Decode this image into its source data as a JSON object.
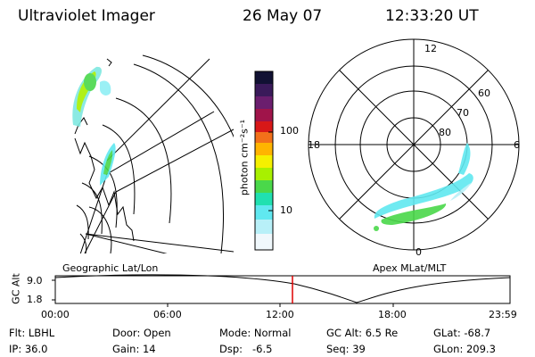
{
  "header": {
    "instrument": "Ultraviolet Imager",
    "date": "26 May 07",
    "time": "12:33:20 UT"
  },
  "colorbar": {
    "unit_label": "photon cm⁻²s⁻¹",
    "ticks": [
      "100",
      "10"
    ],
    "colors": [
      "#111133",
      "#3a1a5a",
      "#6b1e6e",
      "#a0144a",
      "#d81818",
      "#f2701a",
      "#ffb400",
      "#f5f000",
      "#a8f000",
      "#4ad84a",
      "#20e0b0",
      "#60e8f0",
      "#b8f0f8",
      "#f0f8fc"
    ]
  },
  "left_panel": {
    "caption": "Geographic Lat/Lon"
  },
  "right_panel": {
    "caption": "Apex MLat/MLT",
    "mlt_labels": [
      "12",
      "18",
      "6",
      "0"
    ],
    "lat_labels": [
      "60",
      "70",
      "80"
    ]
  },
  "altitude_plot": {
    "ylabel": "GC Alt",
    "y_ticks": [
      "9.0",
      "1.8"
    ],
    "x_ticks": [
      "00:00",
      "06:00",
      "12:00",
      "18:00",
      "23:59"
    ],
    "current_time_marker_color": "#dd0000"
  },
  "status": {
    "flt": "Flt: LBHL",
    "ip": "IP: 36.0",
    "door": "Door: Open",
    "gain": "Gain: 14",
    "mode": "Mode: Normal",
    "dsp": "Dsp:   -6.5",
    "gcalt": "GC Alt: 6.5 Re",
    "seq": "Seq: 39",
    "glat": "GLat: -68.7",
    "glon": "GLon: 209.3"
  }
}
